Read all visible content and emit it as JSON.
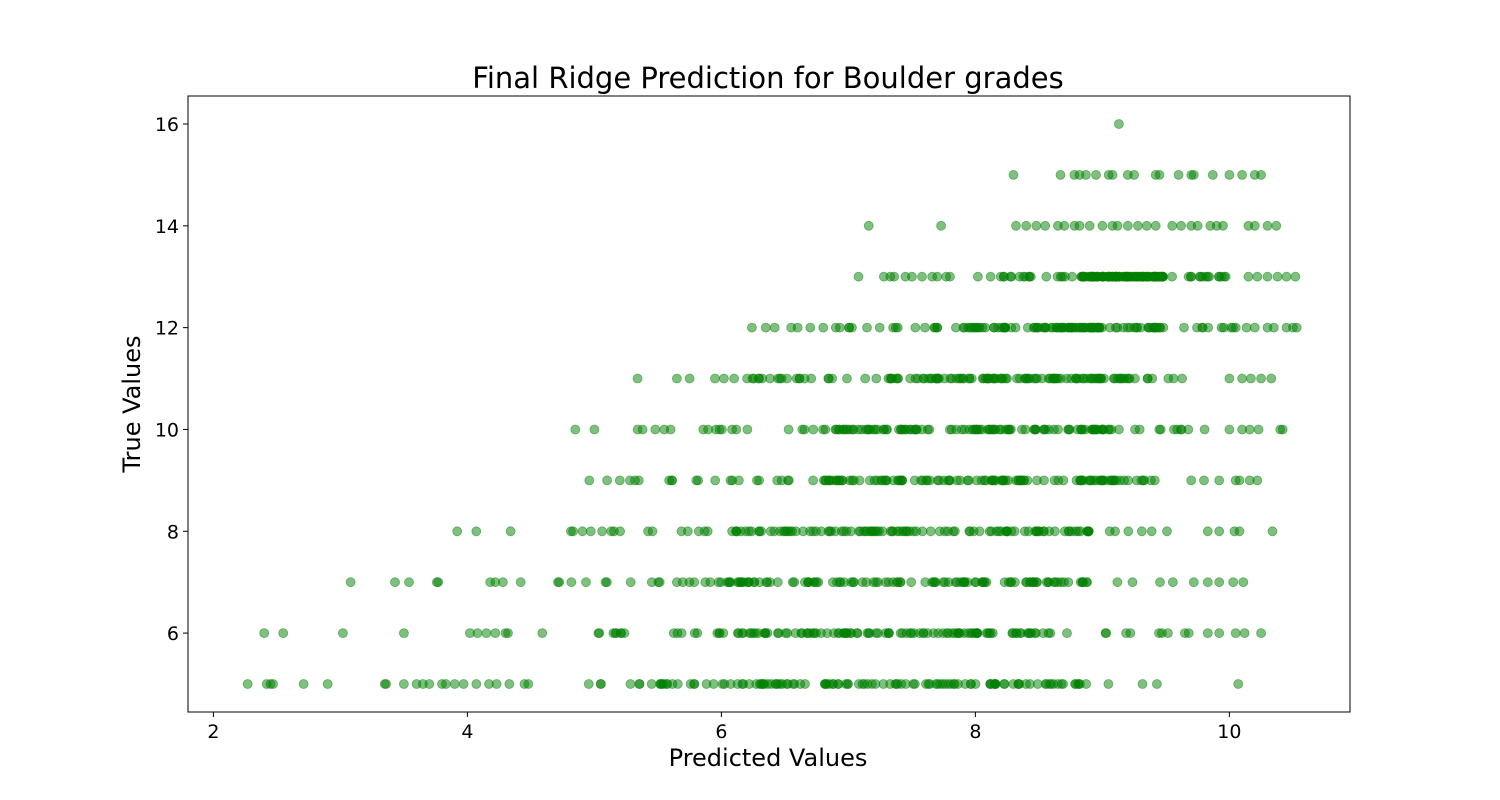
{
  "chart_data": {
    "type": "scatter",
    "title": "Final Ridge Prediction for Boulder grades",
    "xlabel": "Predicted Values",
    "ylabel": "True Values",
    "xlim": [
      1.8,
      10.95
    ],
    "ylim": [
      4.45,
      16.55
    ],
    "xticks": [
      2,
      4,
      6,
      8,
      10
    ],
    "yticks": [
      6,
      8,
      10,
      12,
      14,
      16
    ],
    "grid": false,
    "legend": "none",
    "marker_color": "#008000",
    "marker_alpha": 0.5,
    "series": [
      {
        "points_sparse": [
          [
            2.27,
            5
          ],
          [
            2.42,
            5
          ],
          [
            2.45,
            5
          ],
          [
            2.47,
            5
          ],
          [
            2.71,
            5
          ],
          [
            2.9,
            5
          ],
          [
            3.35,
            5
          ],
          [
            3.36,
            5
          ],
          [
            3.5,
            5
          ],
          [
            3.6,
            5
          ],
          [
            3.65,
            5
          ],
          [
            3.7,
            5
          ],
          [
            3.8,
            5
          ],
          [
            3.83,
            5
          ],
          [
            3.9,
            5
          ],
          [
            3.97,
            5
          ],
          [
            4.07,
            5
          ],
          [
            4.17,
            5
          ],
          [
            4.23,
            5
          ],
          [
            4.33,
            5
          ],
          [
            4.45,
            5
          ],
          [
            4.48,
            5
          ],
          [
            10.07,
            5
          ],
          [
            2.4,
            6
          ],
          [
            2.55,
            6
          ],
          [
            3.02,
            6
          ],
          [
            3.5,
            6
          ],
          [
            4.02,
            6
          ],
          [
            4.08,
            6
          ],
          [
            4.15,
            6
          ],
          [
            4.22,
            6
          ],
          [
            4.3,
            6
          ],
          [
            4.32,
            6
          ],
          [
            9.65,
            6
          ],
          [
            9.68,
            6
          ],
          [
            9.83,
            6
          ],
          [
            9.92,
            6
          ],
          [
            10.05,
            6
          ],
          [
            10.12,
            6
          ],
          [
            10.25,
            6
          ],
          [
            3.08,
            7
          ],
          [
            3.43,
            7
          ],
          [
            3.54,
            7
          ],
          [
            3.76,
            7
          ],
          [
            3.77,
            7
          ],
          [
            4.18,
            7
          ],
          [
            4.22,
            7
          ],
          [
            4.28,
            7
          ],
          [
            4.42,
            7
          ],
          [
            9.72,
            7
          ],
          [
            9.83,
            7
          ],
          [
            9.92,
            7
          ],
          [
            10.03,
            7
          ],
          [
            10.11,
            7
          ],
          [
            3.92,
            8
          ],
          [
            4.07,
            8
          ],
          [
            4.34,
            8
          ],
          [
            9.83,
            8
          ],
          [
            9.92,
            8
          ],
          [
            10.04,
            8
          ],
          [
            10.08,
            8
          ],
          [
            10.34,
            8
          ],
          [
            4.96,
            9
          ],
          [
            5.1,
            9
          ],
          [
            5.2,
            9
          ],
          [
            5.28,
            9
          ],
          [
            5.32,
            9
          ],
          [
            5.35,
            9
          ],
          [
            9.8,
            9
          ],
          [
            9.92,
            9
          ],
          [
            10.05,
            9
          ],
          [
            10.08,
            9
          ],
          [
            10.16,
            9
          ],
          [
            10.22,
            9
          ],
          [
            4.85,
            10
          ],
          [
            5.0,
            10
          ],
          [
            5.34,
            10
          ],
          [
            5.38,
            10
          ],
          [
            5.48,
            10
          ],
          [
            5.55,
            10
          ],
          [
            5.6,
            10
          ],
          [
            10.0,
            10
          ],
          [
            10.1,
            10
          ],
          [
            10.16,
            10
          ],
          [
            10.23,
            10
          ],
          [
            10.4,
            10
          ],
          [
            10.42,
            10
          ],
          [
            5.34,
            11
          ],
          [
            5.65,
            11
          ],
          [
            5.75,
            11
          ],
          [
            5.95,
            11
          ],
          [
            6.02,
            11
          ],
          [
            6.1,
            11
          ],
          [
            10.0,
            11
          ],
          [
            10.1,
            11
          ],
          [
            10.17,
            11
          ],
          [
            10.25,
            11
          ],
          [
            10.33,
            11
          ],
          [
            6.24,
            12
          ],
          [
            6.35,
            12
          ],
          [
            6.42,
            12
          ],
          [
            6.55,
            12
          ],
          [
            6.6,
            12
          ],
          [
            6.7,
            12
          ],
          [
            10.2,
            12
          ],
          [
            10.3,
            12
          ],
          [
            10.35,
            12
          ],
          [
            10.45,
            12
          ],
          [
            10.5,
            12
          ],
          [
            10.53,
            12
          ],
          [
            7.08,
            13
          ],
          [
            7.28,
            13
          ],
          [
            7.33,
            13
          ],
          [
            7.36,
            13
          ],
          [
            7.45,
            13
          ],
          [
            7.5,
            13
          ],
          [
            7.58,
            13
          ],
          [
            7.66,
            13
          ],
          [
            7.7,
            13
          ],
          [
            7.77,
            13
          ],
          [
            7.8,
            13
          ],
          [
            8.02,
            13
          ],
          [
            8.12,
            13
          ],
          [
            8.2,
            13
          ],
          [
            10.15,
            13
          ],
          [
            10.22,
            13
          ],
          [
            10.3,
            13
          ],
          [
            10.38,
            13
          ],
          [
            10.45,
            13
          ],
          [
            10.52,
            13
          ],
          [
            7.16,
            14
          ],
          [
            7.73,
            14
          ],
          [
            8.32,
            14
          ],
          [
            8.4,
            14
          ],
          [
            8.48,
            14
          ],
          [
            8.55,
            14
          ],
          [
            8.65,
            14
          ],
          [
            8.7,
            14
          ],
          [
            8.78,
            14
          ],
          [
            8.82,
            14
          ],
          [
            8.9,
            14
          ],
          [
            9.0,
            14
          ],
          [
            9.08,
            14
          ],
          [
            9.12,
            14
          ],
          [
            9.2,
            14
          ],
          [
            9.28,
            14
          ],
          [
            9.35,
            14
          ],
          [
            9.42,
            14
          ],
          [
            9.55,
            14
          ],
          [
            9.62,
            14
          ],
          [
            9.7,
            14
          ],
          [
            9.75,
            14
          ],
          [
            9.85,
            14
          ],
          [
            9.9,
            14
          ],
          [
            9.95,
            14
          ],
          [
            10.15,
            14
          ],
          [
            10.2,
            14
          ],
          [
            10.3,
            14
          ],
          [
            10.37,
            14
          ],
          [
            8.3,
            15
          ],
          [
            8.67,
            15
          ],
          [
            8.78,
            15
          ],
          [
            8.82,
            15
          ],
          [
            8.87,
            15
          ],
          [
            8.95,
            15
          ],
          [
            9.05,
            15
          ],
          [
            9.08,
            15
          ],
          [
            9.2,
            15
          ],
          [
            9.25,
            15
          ],
          [
            9.42,
            15
          ],
          [
            9.45,
            15
          ],
          [
            9.6,
            15
          ],
          [
            9.7,
            15
          ],
          [
            9.72,
            15
          ],
          [
            9.87,
            15
          ],
          [
            10.0,
            15
          ],
          [
            10.1,
            15
          ],
          [
            10.2,
            15
          ],
          [
            10.25,
            15
          ],
          [
            9.13,
            16
          ]
        ],
        "dense_bands": [
          {
            "y": 5,
            "x_from": 4.5,
            "x_to": 9.45,
            "core_from": 5.5,
            "core_to": 8.8
          },
          {
            "y": 6,
            "x_from": 4.55,
            "x_to": 9.6,
            "core_from": 5.9,
            "core_to": 8.6
          },
          {
            "y": 7,
            "x_from": 4.5,
            "x_to": 9.6,
            "core_from": 5.9,
            "core_to": 8.9
          },
          {
            "y": 8,
            "x_from": 4.75,
            "x_to": 9.7,
            "core_from": 6.1,
            "core_to": 9.0
          },
          {
            "y": 9,
            "x_from": 5.5,
            "x_to": 9.8,
            "core_from": 6.5,
            "core_to": 9.1
          },
          {
            "y": 10,
            "x_from": 5.62,
            "x_to": 9.95,
            "core_from": 6.9,
            "core_to": 9.2
          },
          {
            "y": 11,
            "x_from": 6.2,
            "x_to": 9.95,
            "core_from": 7.3,
            "core_to": 9.3
          },
          {
            "y": 12,
            "x_from": 6.75,
            "x_to": 10.15,
            "core_from": 7.9,
            "core_to": 9.5
          },
          {
            "y": 13,
            "x_from": 8.22,
            "x_to": 10.1,
            "core_from": 8.8,
            "core_to": 9.5
          }
        ]
      }
    ]
  }
}
